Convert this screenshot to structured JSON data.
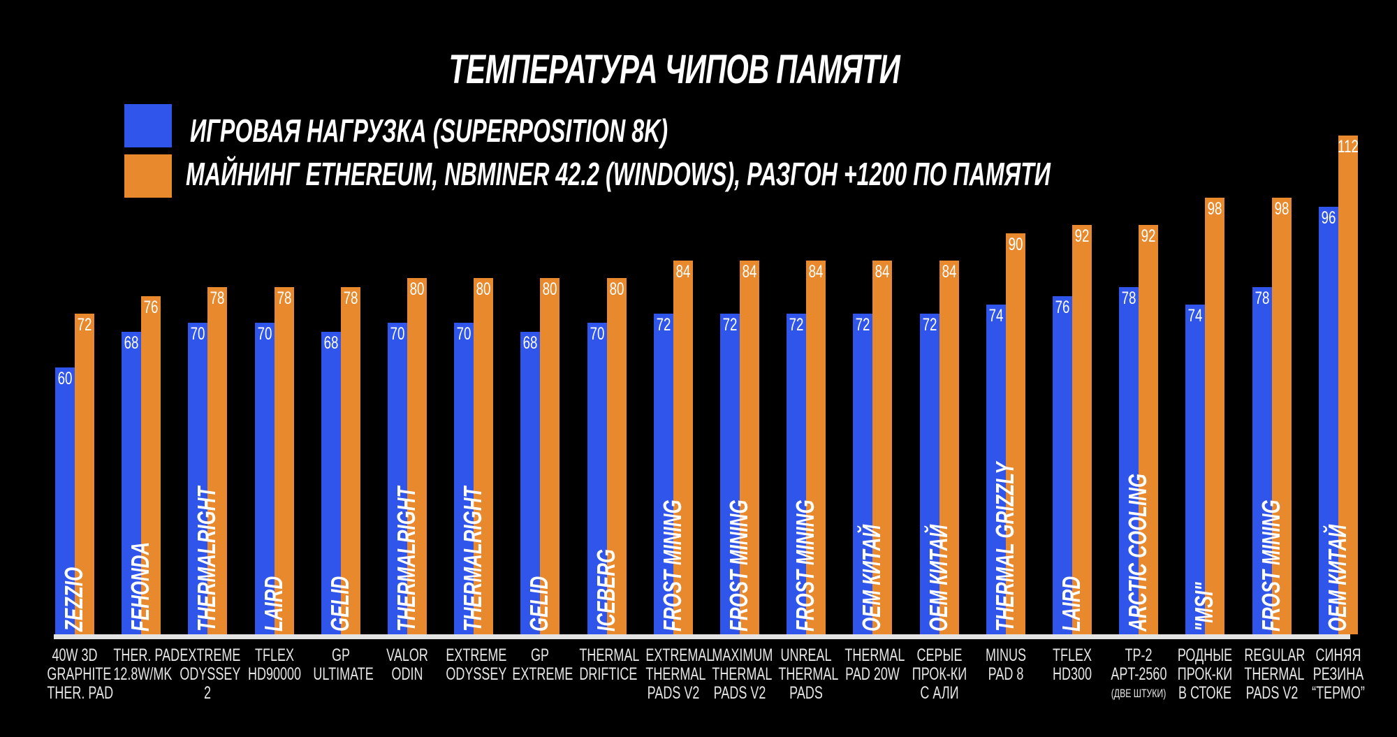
{
  "chart_data": {
    "type": "bar",
    "title": "ТЕМПЕРАТУРА ЧИПОВ ПАМЯТИ",
    "ylim": [
      0,
      112
    ],
    "grid": false,
    "legend_placement": "top-left",
    "series": [
      {
        "name": "ИГРОВАЯ НАГРУЗКА (SUPERPOSITION 8K)",
        "color": "#2f55ea",
        "values": [
          60,
          68,
          70,
          70,
          68,
          70,
          70,
          68,
          70,
          72,
          72,
          72,
          72,
          72,
          74,
          76,
          78,
          74,
          78,
          96
        ]
      },
      {
        "name": "МАЙНИНГ ETHEREUM, NBMINER 42.2 (WINDOWS), РАЗГОН +1200 ПО ПАМЯТИ",
        "color": "#e8892e",
        "values": [
          72,
          76,
          78,
          78,
          78,
          80,
          80,
          80,
          80,
          84,
          84,
          84,
          84,
          84,
          90,
          92,
          92,
          98,
          98,
          112
        ]
      }
    ],
    "brands": [
      "ZEZZIO",
      "FEHONDA",
      "THERMALRIGHT",
      "LAIRD",
      "GELID",
      "THERMALRIGHT",
      "THERMALRIGHT",
      "GELID",
      "ICEBERG",
      "FROST MINING",
      "FROST MINING",
      "FROST MINING",
      "OEM КИТАЙ",
      "OEM КИТАЙ",
      "THERMAL GRIZZLY",
      "LAIRD",
      "ARCTIC COOLING",
      "\"MSI\"",
      "FROST MINING",
      "OEM КИТАЙ"
    ],
    "categories": [
      [
        "40W 3D",
        "GRAPHITE",
        "THER. PAD"
      ],
      [
        "THER. PAD",
        "12.8W/MK"
      ],
      [
        "EXTREME",
        "ODYSSEY",
        "2"
      ],
      [
        "TFLEX",
        "HD90000"
      ],
      [
        "GP",
        "ULTIMATE"
      ],
      [
        "VALOR",
        "ODIN"
      ],
      [
        "EXTREME",
        "ODYSSEY"
      ],
      [
        "GP",
        "EXTREME"
      ],
      [
        "THERMAL",
        "DRIFTICE"
      ],
      [
        "EXTREMAL",
        "THERMAL",
        "PADS V2"
      ],
      [
        "MAXIMUM",
        "THERMAL",
        "PADS V2"
      ],
      [
        "UNREAL",
        "THERMAL",
        "PADS"
      ],
      [
        "THERMAL",
        "PAD 20W"
      ],
      [
        "СЕРЫЕ",
        "ПРОК-КИ",
        "С АЛИ"
      ],
      [
        "MINUS",
        "PAD 8"
      ],
      [
        "TFLEX",
        "HD300"
      ],
      [
        "TP-2",
        "APT-2560",
        "(ДВЕ ШТУКИ)"
      ],
      [
        "РОДНЫЕ",
        "ПРОК-КИ",
        "В СТОКЕ"
      ],
      [
        "REGULAR",
        "THERMAL",
        "PADS V2"
      ],
      [
        "СИНЯЯ",
        "РЕЗИНА",
        "“ТЕРМО”"
      ]
    ]
  }
}
